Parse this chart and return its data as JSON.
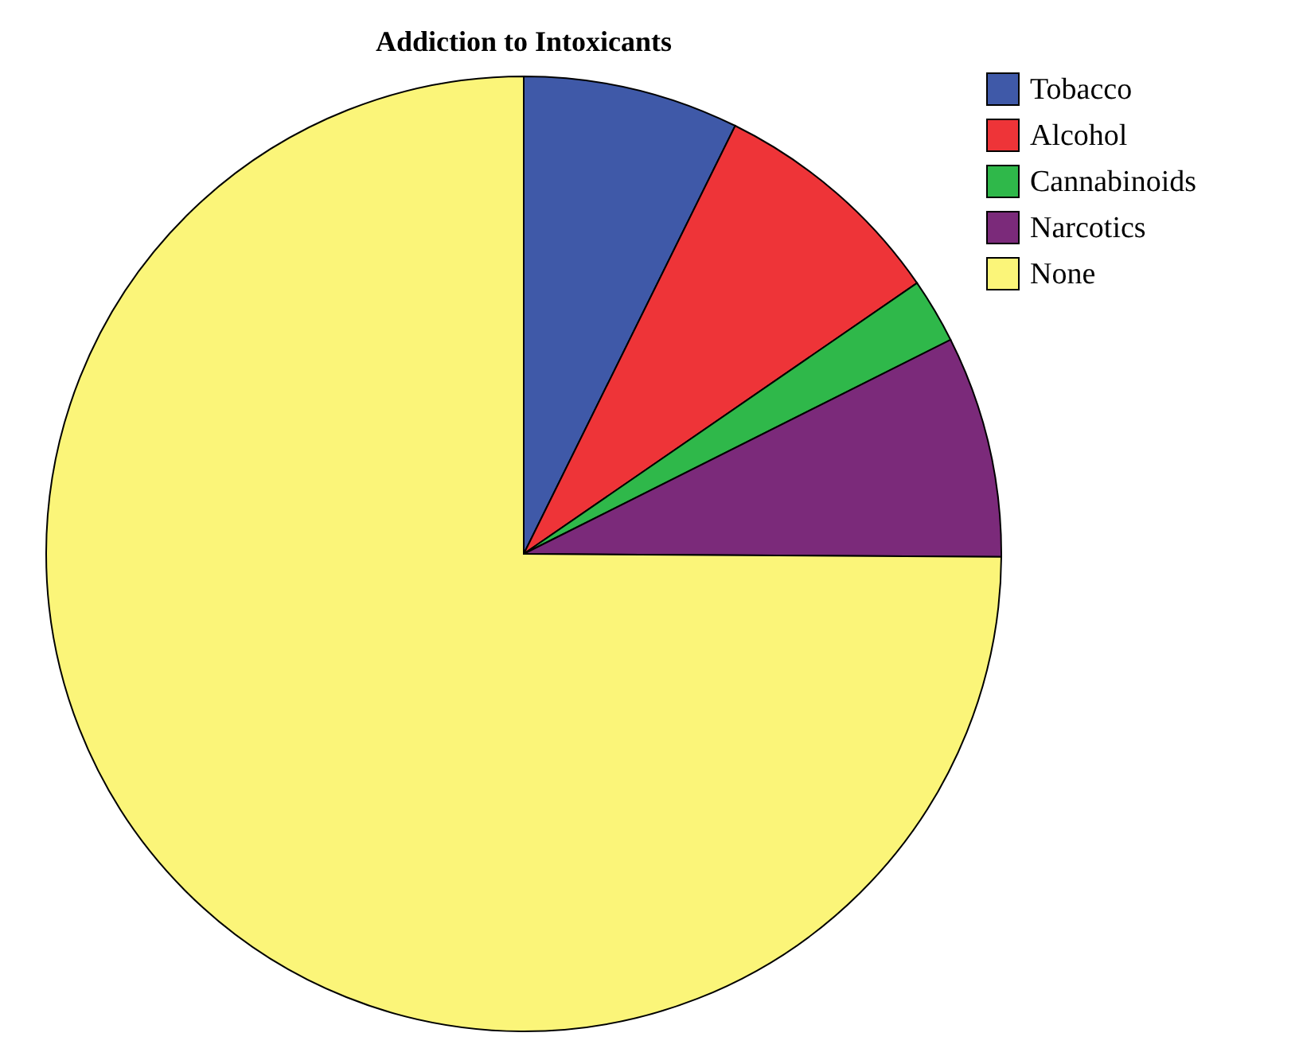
{
  "chart_data": {
    "type": "pie",
    "title": "Addiction to Intoxicants",
    "categories": [
      "Tobacco",
      "Alcohol",
      "Cannabinoids",
      "Narcotics",
      "None"
    ],
    "values": [
      7.3,
      8.1,
      2.2,
      7.5,
      74.9
    ],
    "colors": [
      "#3f59a8",
      "#ee3438",
      "#2fb84a",
      "#7b2a7a",
      "#fbf579"
    ],
    "legend": "top right"
  }
}
